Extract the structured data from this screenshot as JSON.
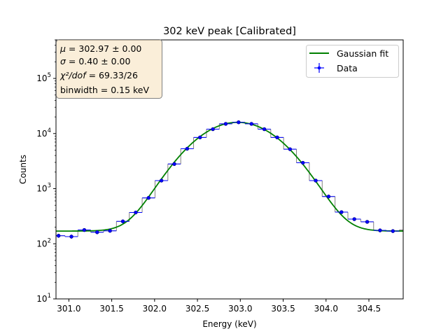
{
  "chart_data": {
    "type": "line",
    "title": "302 keV peak [Calibrated]",
    "xlabel": "Energy (keV)",
    "ylabel": "Counts",
    "xlim": [
      300.85,
      304.9
    ],
    "ylim": [
      10,
      500000
    ],
    "yscale": "log",
    "grid": false,
    "legend_position": "top-right",
    "x_ticks": [
      "301.0",
      "301.5",
      "302.0",
      "302.5",
      "303.0",
      "303.5",
      "304.0",
      "304.5"
    ],
    "x_tick_values": [
      301.0,
      301.5,
      302.0,
      302.5,
      303.0,
      303.5,
      304.0,
      304.5
    ],
    "y_ticks": [
      {
        "value": 10,
        "mantissa": "10",
        "exponent": "1"
      },
      {
        "value": 100,
        "mantissa": "10",
        "exponent": "2"
      },
      {
        "value": 1000,
        "mantissa": "10",
        "exponent": "3"
      },
      {
        "value": 10000,
        "mantissa": "10",
        "exponent": "4"
      },
      {
        "value": 100000,
        "mantissa": "10",
        "exponent": "5"
      }
    ],
    "histogram": {
      "bin_width": 0.15,
      "centers": [
        300.88,
        301.03,
        301.18,
        301.33,
        301.48,
        301.63,
        301.78,
        301.93,
        302.08,
        302.23,
        302.38,
        302.53,
        302.68,
        302.83,
        302.98,
        303.13,
        303.28,
        303.43,
        303.58,
        303.73,
        303.88,
        304.03,
        304.18,
        304.33,
        304.48,
        304.63,
        304.78,
        304.93
      ],
      "counts": [
        140,
        135,
        178,
        162,
        172,
        255,
        370,
        680,
        1400,
        2800,
        5300,
        8500,
        12000,
        15000,
        16000,
        15000,
        12000,
        8500,
        5200,
        2950,
        1400,
        720,
        375,
        280,
        250,
        175,
        170,
        178
      ]
    },
    "series": [
      {
        "name": "Gaussian fit",
        "color": "#008000",
        "model": {
          "mu": 302.97,
          "sigma": 0.4,
          "amplitude": 15800,
          "background": 170
        }
      },
      {
        "name": "Data",
        "color": "#0000ff",
        "x": [
          300.88,
          301.03,
          301.18,
          301.33,
          301.48,
          301.63,
          301.78,
          301.93,
          302.08,
          302.23,
          302.38,
          302.53,
          302.68,
          302.83,
          302.98,
          303.13,
          303.28,
          303.43,
          303.58,
          303.73,
          303.88,
          304.03,
          304.18,
          304.33,
          304.48,
          304.63,
          304.78
        ],
        "y": [
          140,
          135,
          178,
          162,
          172,
          255,
          370,
          680,
          1400,
          2800,
          5300,
          8500,
          12000,
          15000,
          16000,
          15000,
          12000,
          8500,
          5200,
          2950,
          1400,
          720,
          375,
          280,
          250,
          175,
          170
        ]
      }
    ],
    "annotation_lines": [
      {
        "symbol": "μ",
        "rest": " = 302.97 ± 0.00"
      },
      {
        "symbol": "σ",
        "rest": " = 0.40 ± 0.00"
      },
      {
        "symbol": "χ²/dof",
        "rest": " = 69.33/26"
      },
      {
        "symbol": "",
        "rest": "binwidth = 0.15 keV"
      }
    ],
    "colors": {
      "histogram": "#808080",
      "annotation_box_fill": "#f5deb3",
      "annotation_box_edge": "#808080"
    }
  }
}
